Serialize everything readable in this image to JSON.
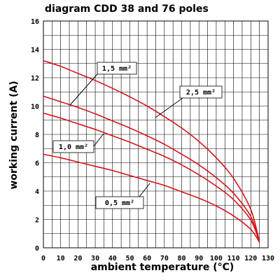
{
  "chart_data": {
    "type": "line",
    "title": "diagram CDD 38 and 76 poles",
    "xlabel": "ambient temperature (°C)",
    "ylabel": "working current (A)",
    "xlim": [
      0,
      130
    ],
    "ylim": [
      0,
      16
    ],
    "xticks": [
      0,
      10,
      20,
      30,
      40,
      50,
      60,
      70,
      80,
      90,
      100,
      110,
      120,
      130
    ],
    "yticks": [
      0,
      2,
      4,
      6,
      8,
      10,
      12,
      14,
      16
    ],
    "grid": true,
    "series_color": "#d8141d",
    "series": [
      {
        "name": "2,5 mm²",
        "x": [
          0,
          10,
          20,
          30,
          40,
          50,
          60,
          70,
          80,
          90,
          100,
          110,
          120,
          125
        ],
        "y": [
          13.2,
          12.8,
          12.3,
          11.8,
          11.25,
          10.65,
          10.0,
          9.25,
          8.45,
          7.5,
          6.35,
          4.9,
          2.7,
          0.4
        ]
      },
      {
        "name": "1,5 mm²",
        "x": [
          0,
          10,
          20,
          30,
          40,
          50,
          60,
          70,
          80,
          90,
          100,
          110,
          120,
          125
        ],
        "y": [
          10.7,
          10.3,
          9.9,
          9.45,
          8.95,
          8.45,
          7.9,
          7.3,
          6.6,
          5.85,
          4.95,
          3.85,
          2.2,
          0.4
        ]
      },
      {
        "name": "1,0 mm²",
        "x": [
          0,
          10,
          20,
          30,
          40,
          50,
          60,
          70,
          80,
          90,
          100,
          110,
          120,
          125
        ],
        "y": [
          9.5,
          9.15,
          8.75,
          8.35,
          7.9,
          7.45,
          6.95,
          6.45,
          5.85,
          5.15,
          4.35,
          3.4,
          1.95,
          0.4
        ]
      },
      {
        "name": "0,5 mm²",
        "x": [
          0,
          10,
          20,
          30,
          40,
          50,
          60,
          70,
          80,
          90,
          100,
          110,
          120,
          125
        ],
        "y": [
          6.6,
          6.35,
          6.05,
          5.75,
          5.45,
          5.1,
          4.75,
          4.4,
          3.95,
          3.5,
          2.95,
          2.25,
          1.3,
          0.4
        ]
      }
    ]
  }
}
